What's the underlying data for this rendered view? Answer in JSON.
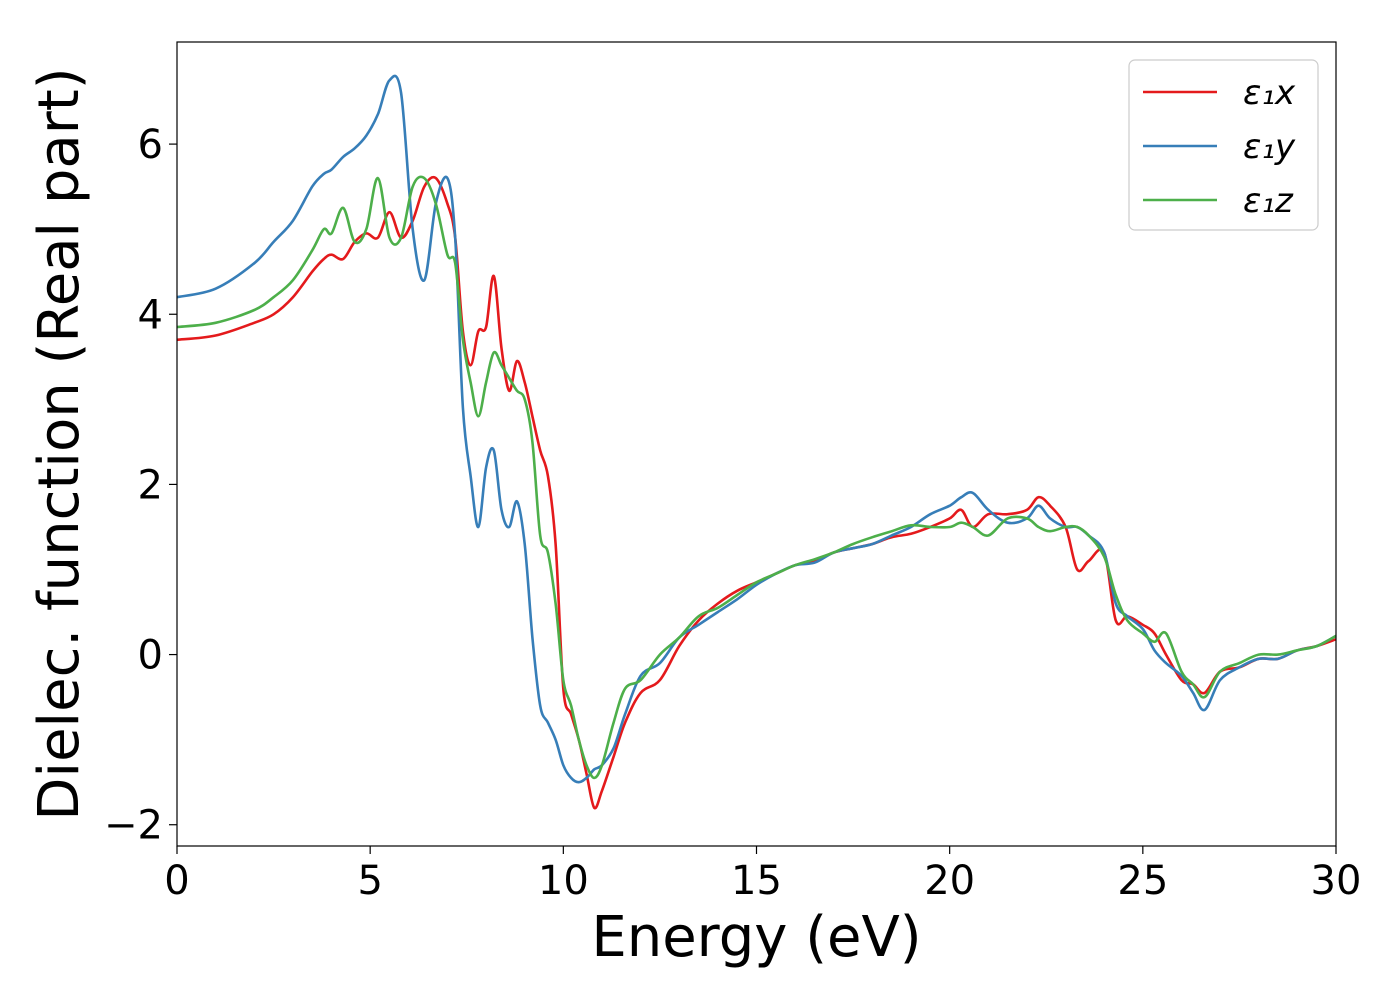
{
  "chart_data": {
    "type": "line",
    "title": "",
    "xlabel": "Energy (eV)",
    "ylabel": "Dielec. function (Real part)",
    "xlim": [
      0,
      30
    ],
    "ylim": [
      -2.25,
      7.2
    ],
    "xticks": [
      0,
      5,
      10,
      15,
      20,
      25,
      30
    ],
    "xtick_labels": [
      "0",
      "5",
      "10",
      "15",
      "20",
      "25",
      "30"
    ],
    "yticks": [
      -2,
      0,
      2,
      4,
      6
    ],
    "ytick_labels": [
      "−2",
      "0",
      "2",
      "4",
      "6"
    ],
    "grid": false,
    "legend_position": "top-right",
    "series": [
      {
        "name": "ε₁x",
        "color": "#e41a1c",
        "x": [
          0,
          1,
          2,
          2.5,
          3,
          3.5,
          3.8,
          4.0,
          4.3,
          4.6,
          4.9,
          5.2,
          5.5,
          5.8,
          6.1,
          6.4,
          6.7,
          7.0,
          7.2,
          7.4,
          7.6,
          7.8,
          8.0,
          8.2,
          8.4,
          8.6,
          8.8,
          9.0,
          9.2,
          9.4,
          9.6,
          9.8,
          10.0,
          10.2,
          10.4,
          10.6,
          10.8,
          11.0,
          11.3,
          11.6,
          12.0,
          12.5,
          13.0,
          13.5,
          14.0,
          14.5,
          15.0,
          15.5,
          16.0,
          16.5,
          17.0,
          17.5,
          18.0,
          18.5,
          19.0,
          19.5,
          20.0,
          20.3,
          20.6,
          21.0,
          21.5,
          22.0,
          22.3,
          22.6,
          23.0,
          23.3,
          23.6,
          24.0,
          24.3,
          24.6,
          25.0,
          25.3,
          25.6,
          26.0,
          26.3,
          26.6,
          27.0,
          27.5,
          28.0,
          28.5,
          29.0,
          29.5,
          30.0
        ],
        "values": [
          3.7,
          3.75,
          3.9,
          4.0,
          4.2,
          4.5,
          4.65,
          4.7,
          4.65,
          4.85,
          4.95,
          4.9,
          5.2,
          4.9,
          5.1,
          5.5,
          5.6,
          5.3,
          4.9,
          3.8,
          3.4,
          3.8,
          3.85,
          4.45,
          3.6,
          3.1,
          3.45,
          3.2,
          2.8,
          2.4,
          2.1,
          1.3,
          -0.4,
          -0.7,
          -1.0,
          -1.4,
          -1.8,
          -1.6,
          -1.2,
          -0.8,
          -0.45,
          -0.3,
          0.1,
          0.4,
          0.6,
          0.75,
          0.85,
          0.95,
          1.05,
          1.1,
          1.2,
          1.25,
          1.3,
          1.38,
          1.42,
          1.5,
          1.6,
          1.7,
          1.5,
          1.65,
          1.65,
          1.7,
          1.85,
          1.75,
          1.5,
          1.0,
          1.1,
          1.2,
          0.4,
          0.45,
          0.35,
          0.25,
          0.0,
          -0.3,
          -0.35,
          -0.45,
          -0.2,
          -0.15,
          -0.05,
          -0.05,
          0.05,
          0.1,
          0.18
        ]
      },
      {
        "name": "ε₁y",
        "color": "#377eb8",
        "x": [
          0,
          1,
          2,
          2.5,
          3,
          3.5,
          3.8,
          4.0,
          4.3,
          4.6,
          4.9,
          5.2,
          5.5,
          5.8,
          6.1,
          6.4,
          6.7,
          7.0,
          7.2,
          7.4,
          7.6,
          7.8,
          8.0,
          8.2,
          8.4,
          8.6,
          8.8,
          9.0,
          9.2,
          9.4,
          9.6,
          9.8,
          10.0,
          10.2,
          10.4,
          10.6,
          10.8,
          11.0,
          11.3,
          11.6,
          12.0,
          12.5,
          13.0,
          13.5,
          14.0,
          14.5,
          15.0,
          15.5,
          16.0,
          16.5,
          17.0,
          17.5,
          18.0,
          18.5,
          19.0,
          19.5,
          20.0,
          20.3,
          20.6,
          21.0,
          21.5,
          22.0,
          22.3,
          22.6,
          23.0,
          23.3,
          23.6,
          24.0,
          24.3,
          24.6,
          25.0,
          25.3,
          25.6,
          26.0,
          26.3,
          26.6,
          27.0,
          27.5,
          28.0,
          28.5,
          29.0,
          29.5,
          30.0
        ],
        "values": [
          4.2,
          4.3,
          4.6,
          4.85,
          5.1,
          5.5,
          5.65,
          5.7,
          5.85,
          5.95,
          6.1,
          6.35,
          6.75,
          6.6,
          5.0,
          4.4,
          5.3,
          5.6,
          4.9,
          2.9,
          2.1,
          1.5,
          2.2,
          2.4,
          1.7,
          1.5,
          1.8,
          1.3,
          0.2,
          -0.6,
          -0.8,
          -1.0,
          -1.3,
          -1.45,
          -1.5,
          -1.45,
          -1.35,
          -1.3,
          -1.1,
          -0.7,
          -0.25,
          -0.1,
          0.2,
          0.35,
          0.5,
          0.65,
          0.82,
          0.95,
          1.05,
          1.08,
          1.2,
          1.25,
          1.3,
          1.4,
          1.5,
          1.65,
          1.75,
          1.85,
          1.9,
          1.7,
          1.55,
          1.6,
          1.75,
          1.6,
          1.5,
          1.5,
          1.4,
          1.2,
          0.6,
          0.45,
          0.3,
          0.05,
          -0.1,
          -0.25,
          -0.45,
          -0.65,
          -0.3,
          -0.15,
          -0.05,
          -0.05,
          0.05,
          0.1,
          0.22
        ]
      },
      {
        "name": "ε₁z",
        "color": "#4daf4a",
        "x": [
          0,
          1,
          2,
          2.5,
          3,
          3.5,
          3.8,
          4.0,
          4.3,
          4.6,
          4.9,
          5.2,
          5.5,
          5.8,
          6.1,
          6.4,
          6.7,
          7.0,
          7.2,
          7.4,
          7.6,
          7.8,
          8.0,
          8.2,
          8.4,
          8.6,
          8.8,
          9.0,
          9.2,
          9.4,
          9.6,
          9.8,
          10.0,
          10.2,
          10.4,
          10.6,
          10.8,
          11.0,
          11.3,
          11.6,
          12.0,
          12.5,
          13.0,
          13.5,
          14.0,
          14.5,
          15.0,
          15.5,
          16.0,
          16.5,
          17.0,
          17.5,
          18.0,
          18.5,
          19.0,
          19.5,
          20.0,
          20.3,
          20.6,
          21.0,
          21.5,
          22.0,
          22.3,
          22.6,
          23.0,
          23.3,
          23.6,
          24.0,
          24.3,
          24.6,
          25.0,
          25.3,
          25.6,
          26.0,
          26.3,
          26.6,
          27.0,
          27.5,
          28.0,
          28.5,
          29.0,
          29.5,
          30.0
        ],
        "values": [
          3.85,
          3.9,
          4.05,
          4.2,
          4.4,
          4.75,
          5.0,
          4.95,
          5.25,
          4.85,
          5.0,
          5.6,
          4.9,
          4.9,
          5.5,
          5.6,
          5.3,
          4.7,
          4.6,
          3.7,
          3.2,
          2.8,
          3.2,
          3.55,
          3.4,
          3.25,
          3.1,
          3.0,
          2.5,
          1.4,
          1.2,
          0.6,
          -0.3,
          -0.6,
          -1.0,
          -1.3,
          -1.45,
          -1.3,
          -0.8,
          -0.4,
          -0.3,
          0.0,
          0.2,
          0.45,
          0.55,
          0.7,
          0.85,
          0.95,
          1.05,
          1.12,
          1.2,
          1.3,
          1.38,
          1.45,
          1.52,
          1.5,
          1.5,
          1.55,
          1.5,
          1.4,
          1.6,
          1.6,
          1.5,
          1.45,
          1.5,
          1.5,
          1.4,
          1.15,
          0.7,
          0.4,
          0.25,
          0.15,
          0.25,
          -0.2,
          -0.35,
          -0.5,
          -0.2,
          -0.1,
          0.0,
          0.0,
          0.05,
          0.1,
          0.22
        ]
      }
    ]
  }
}
